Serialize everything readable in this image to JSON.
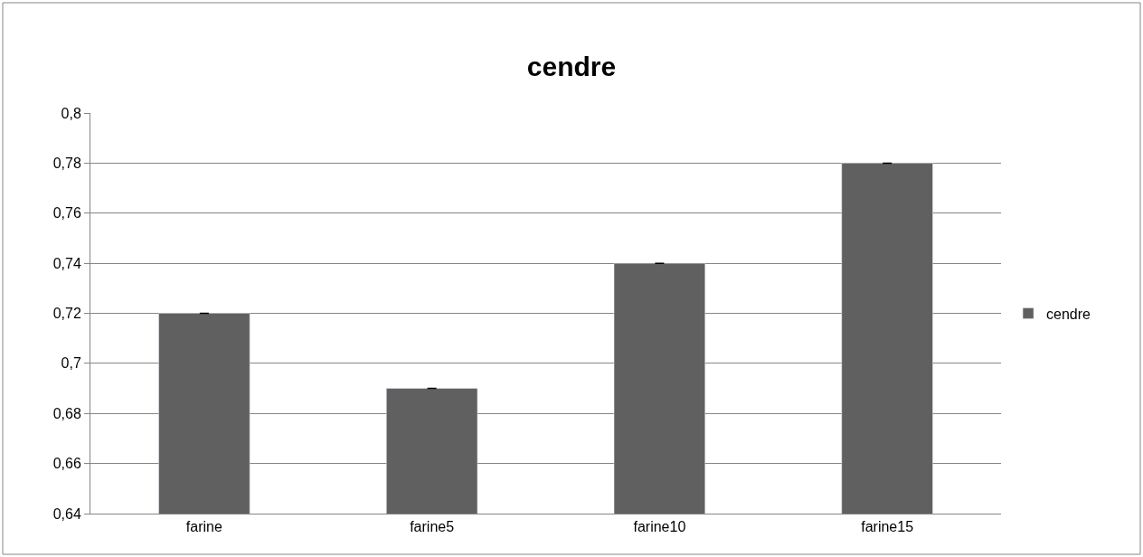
{
  "chart_data": {
    "type": "bar",
    "title": "cendre",
    "categories": [
      "farine",
      "farine5",
      "farine10",
      "farine15"
    ],
    "series": [
      {
        "name": "cendre",
        "color": "#606060",
        "values": [
          0.72,
          0.69,
          0.74,
          0.78
        ],
        "errors": [
          0,
          0,
          0,
          0
        ]
      }
    ],
    "ylim": [
      0.64,
      0.8
    ],
    "yticks": [
      {
        "value": 0.64,
        "label": "0,64"
      },
      {
        "value": 0.66,
        "label": "0,66"
      },
      {
        "value": 0.68,
        "label": "0,68"
      },
      {
        "value": 0.7,
        "label": "0,7"
      },
      {
        "value": 0.72,
        "label": "0,72"
      },
      {
        "value": 0.74,
        "label": "0,74"
      },
      {
        "value": 0.76,
        "label": "0,76"
      },
      {
        "value": 0.78,
        "label": "0,78"
      },
      {
        "value": 0.8,
        "label": "0,8"
      }
    ],
    "grid": "y",
    "legend": "right"
  }
}
